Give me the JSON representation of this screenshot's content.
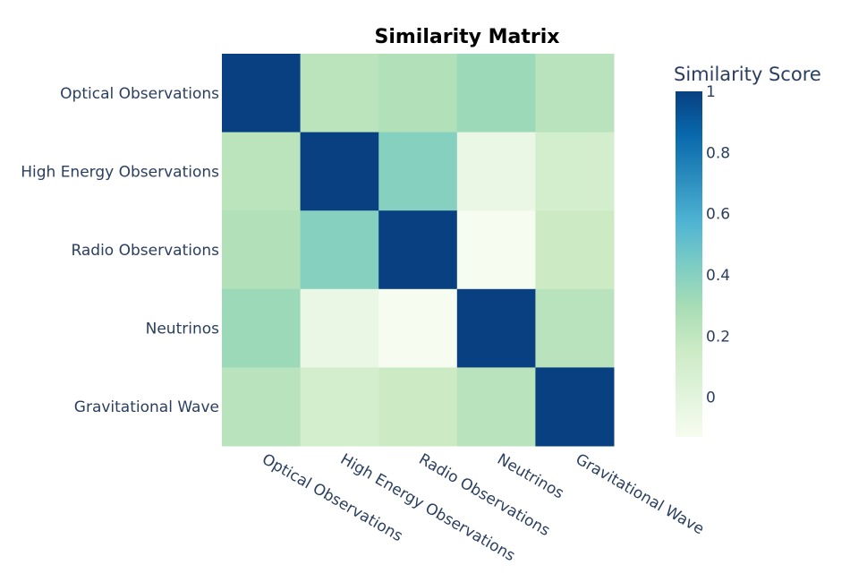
{
  "chart_data": {
    "type": "heatmap",
    "title": "Similarity Matrix",
    "x_categories": [
      "Optical Observations",
      "High Energy Observations",
      "Radio Observations",
      "Neutrinos",
      "Gravitational Wave"
    ],
    "y_categories": [
      "Optical Observations",
      "High Energy Observations",
      "Radio Observations",
      "Neutrinos",
      "Gravitational Wave"
    ],
    "z": [
      [
        1.0,
        0.22,
        0.26,
        0.33,
        0.23
      ],
      [
        0.22,
        1.0,
        0.4,
        -0.05,
        0.1
      ],
      [
        0.26,
        0.4,
        1.0,
        -0.13,
        0.15
      ],
      [
        0.33,
        -0.05,
        -0.13,
        1.0,
        0.23
      ],
      [
        0.23,
        0.1,
        0.15,
        0.23,
        1.0
      ]
    ],
    "zmin": -0.13,
    "zmax": 1.0,
    "colorscale_name": "GnBu",
    "colorscale": [
      "#f7fcf0",
      "#e0f3db",
      "#ccebc5",
      "#a8ddb5",
      "#7bccc4",
      "#4eb3d3",
      "#2b8cbe",
      "#0868ac",
      "#084081"
    ],
    "colorbar": {
      "title": "Similarity Score",
      "ticks": [
        0,
        0.2,
        0.4,
        0.6,
        0.8,
        1
      ],
      "tick_labels": [
        "0",
        "0.2",
        "0.4",
        "0.6",
        "0.8",
        "1"
      ]
    }
  }
}
